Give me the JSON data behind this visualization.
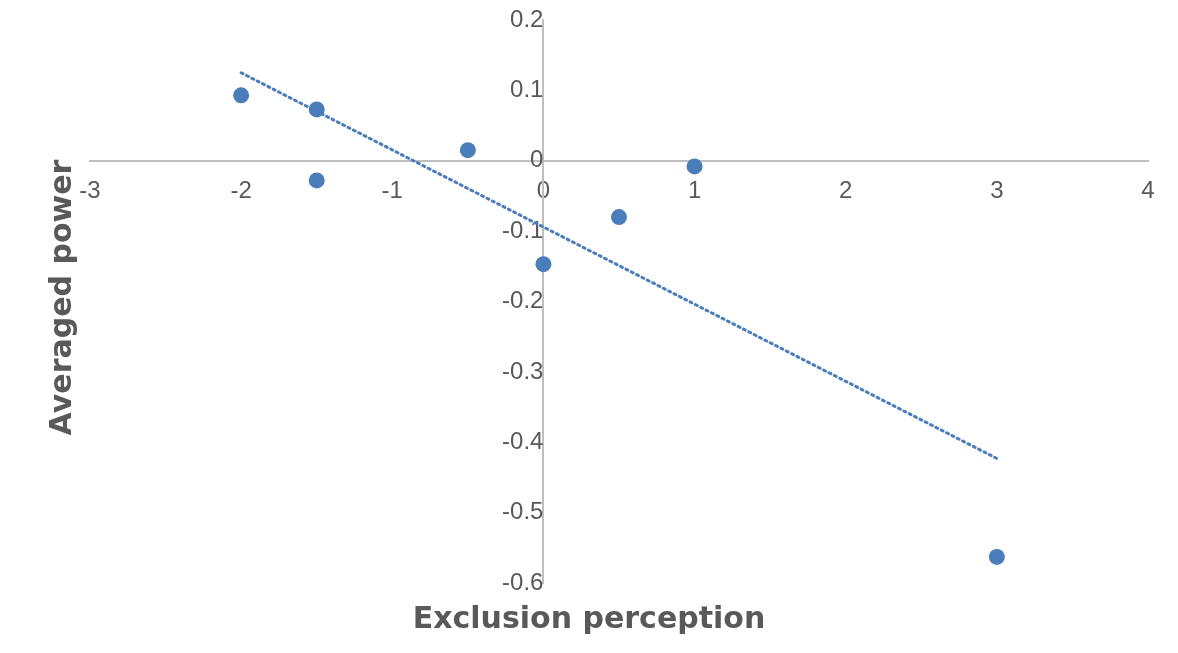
{
  "chart_data": {
    "type": "scatter",
    "xlabel": "Exclusion perception",
    "ylabel": "Averaged power",
    "xlim": [
      -3,
      4
    ],
    "xticks": [
      -3,
      -2,
      -1,
      0,
      1,
      2,
      3,
      4
    ],
    "ylim": [
      -0.6,
      0.2
    ],
    "yticks": [
      -0.6,
      -0.5,
      -0.4,
      -0.3,
      -0.2,
      -0.1,
      0,
      0.1,
      0.2
    ],
    "grid": false,
    "legend": false,
    "marker": "circle",
    "series": [
      {
        "color": "#4a7ebb",
        "x": [
          -2,
          -1.5,
          -1.5,
          -0.5,
          0,
          0.5,
          1,
          3
        ],
        "values": [
          0.093,
          0.073,
          -0.028,
          0.015,
          -0.147,
          -0.08,
          -0.008,
          -0.563
        ]
      },
      {
        "type": "line",
        "color": "#4a7ebb",
        "line_style": "dotted",
        "marker": "none",
        "x": [
          -2,
          3
        ],
        "values": [
          0.125,
          -0.423
        ]
      }
    ]
  }
}
